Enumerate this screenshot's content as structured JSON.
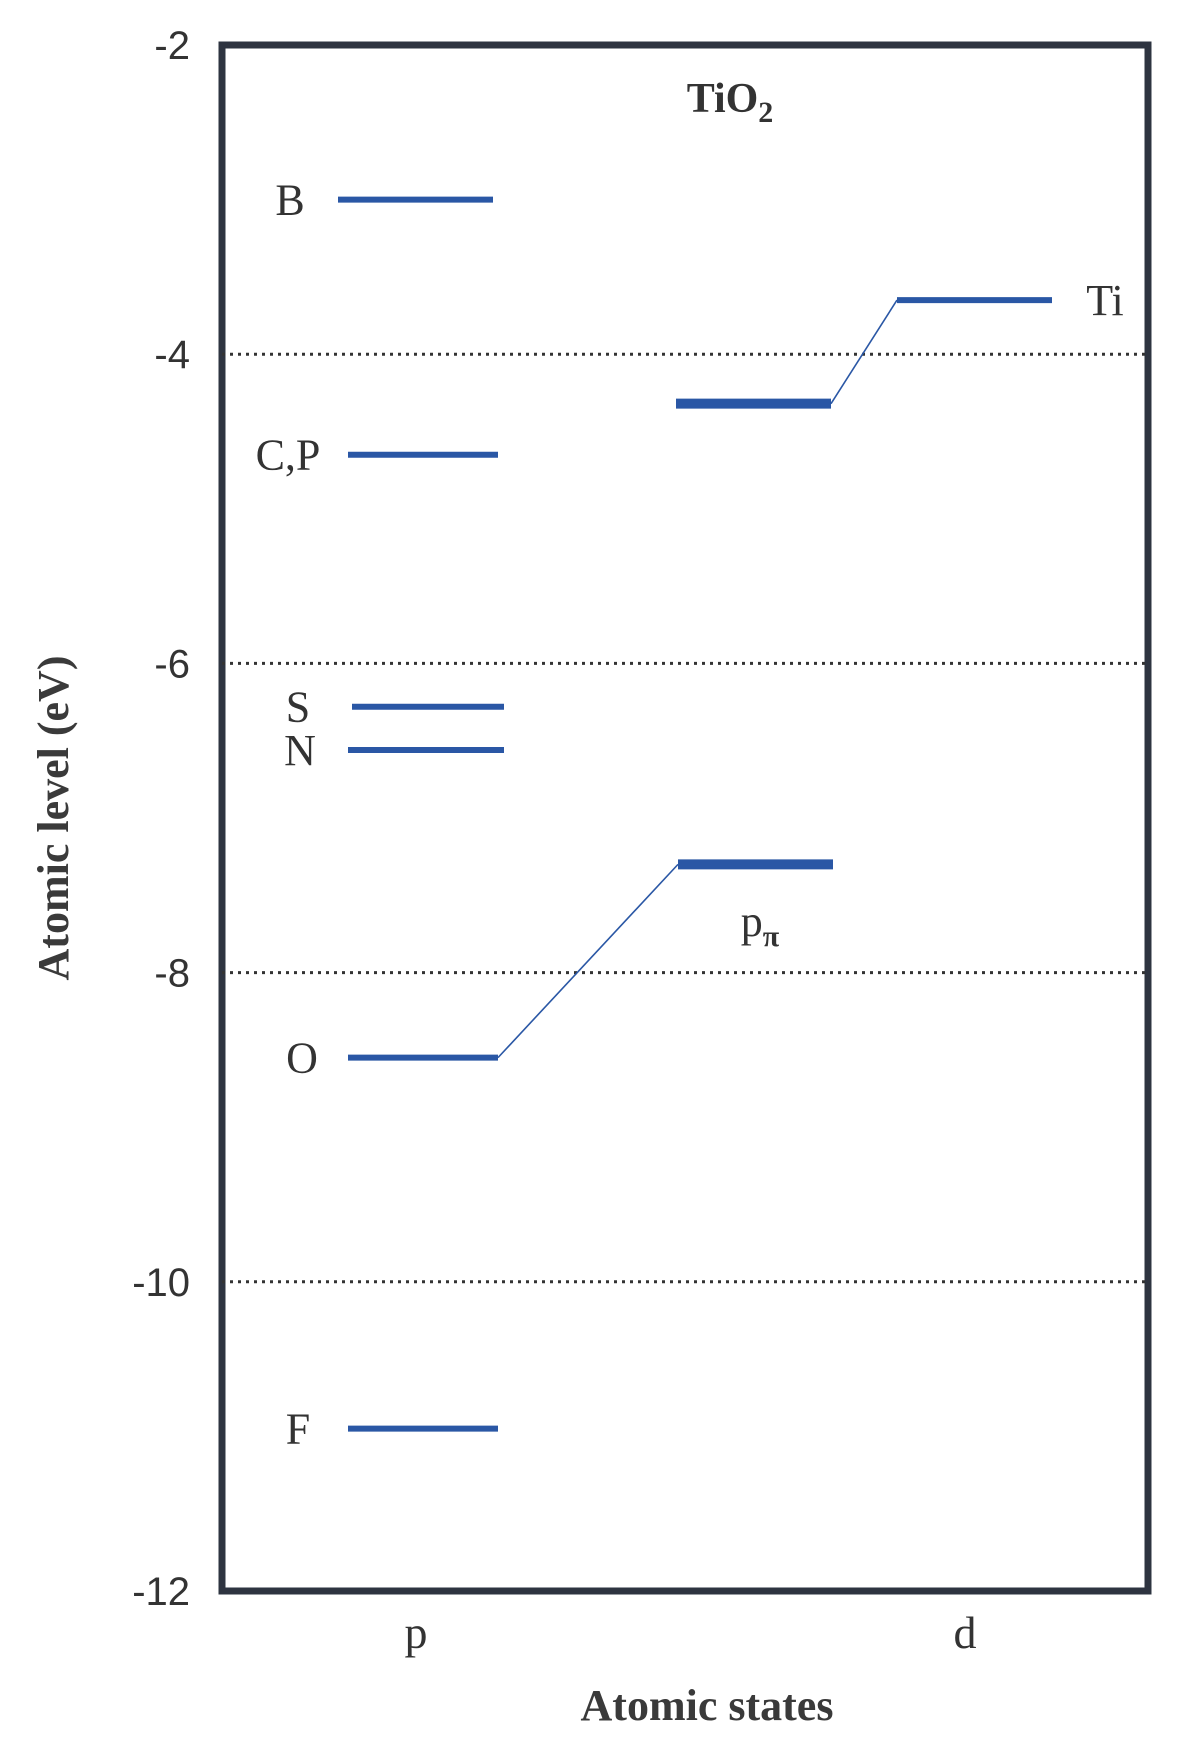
{
  "chart_data": {
    "type": "energy-level diagram",
    "title": "TiO",
    "title_subscript": "2",
    "ylabel": "Atomic level (eV)",
    "xlabel": "Atomic states",
    "ylim": [
      -12,
      -2
    ],
    "yticks": [
      -2,
      -4,
      -6,
      -8,
      -10,
      -12
    ],
    "ytick_labels": [
      "-2",
      "-4",
      "-6",
      "-8",
      "-10",
      "-12"
    ],
    "dotted_gridlines_at": [
      -4,
      -6,
      -8,
      -10
    ],
    "categories": [
      "p",
      "d"
    ],
    "line_color": "#2a57a5",
    "frame_color": "#2e3440",
    "levels": [
      {
        "name": "B",
        "state": "p",
        "energy": -3.0
      },
      {
        "name": "C,P",
        "state": "p",
        "energy": -4.65
      },
      {
        "name": "S",
        "state": "p",
        "energy": -6.28
      },
      {
        "name": "N",
        "state": "p",
        "energy": -6.56
      },
      {
        "name": "O",
        "state": "p",
        "energy": -8.55
      },
      {
        "name": "F",
        "state": "p",
        "energy": -10.95
      },
      {
        "name": "Ti",
        "state": "d",
        "energy": -3.65
      }
    ],
    "hybrid_levels": [
      {
        "name": "p",
        "name_subscript": "π",
        "energy": -7.3,
        "connects_from": "O"
      },
      {
        "name": "",
        "energy": -4.32,
        "connects_from": "Ti"
      }
    ]
  }
}
